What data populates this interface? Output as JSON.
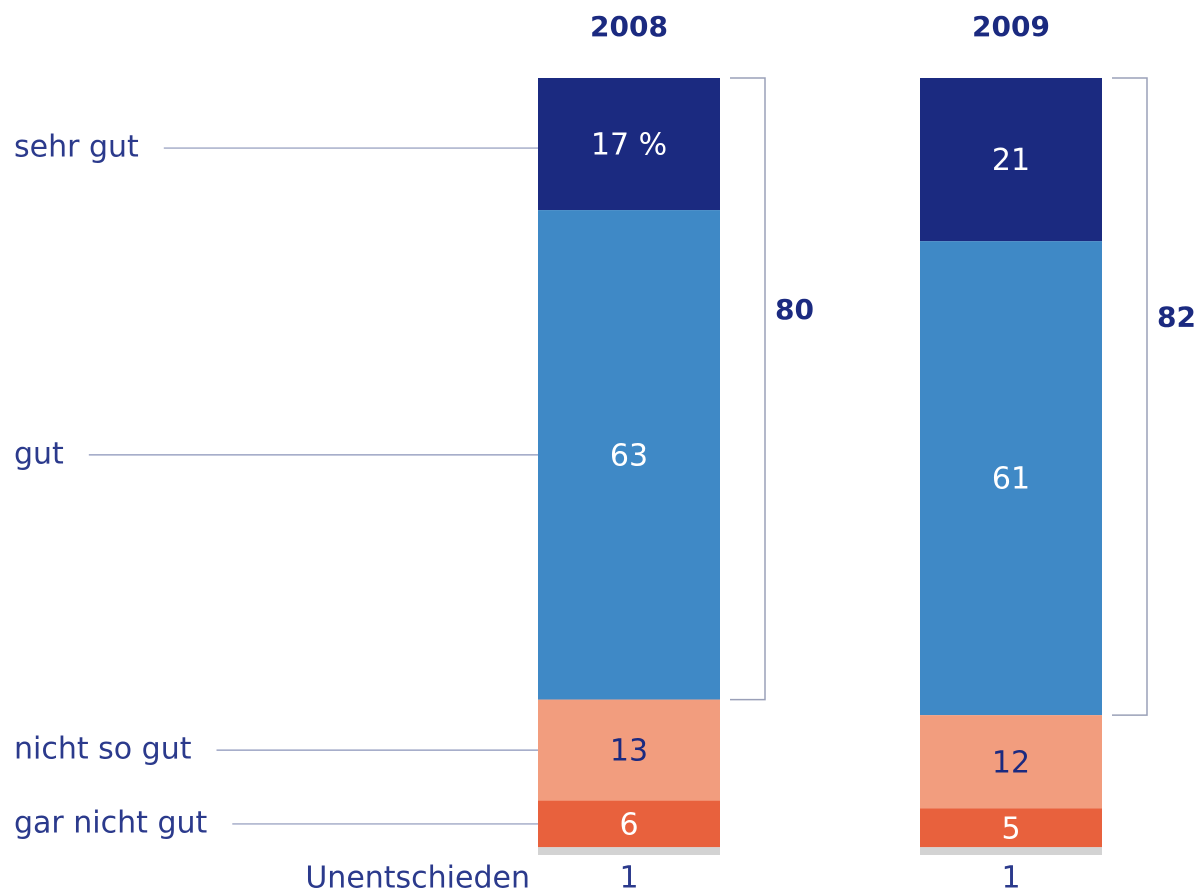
{
  "chart_data": {
    "type": "stacked_bar",
    "categories": [
      "2008",
      "2009"
    ],
    "series": [
      {
        "name": "sehr gut",
        "color": "#1b2a80",
        "values": [
          17,
          21
        ],
        "value_labels": [
          "17 %",
          "21"
        ]
      },
      {
        "name": "gut",
        "color": "#3f89c6",
        "values": [
          63,
          61
        ]
      },
      {
        "name": "nicht so gut",
        "color": "#f29d7e",
        "values": [
          13,
          12
        ]
      },
      {
        "name": "gar nicht gut",
        "color": "#e8613d",
        "values": [
          6,
          5
        ]
      },
      {
        "name": "Unentschieden",
        "color": "#d3d3d3",
        "values": [
          1,
          1
        ]
      }
    ],
    "bracket_totals": [
      80,
      82
    ]
  }
}
